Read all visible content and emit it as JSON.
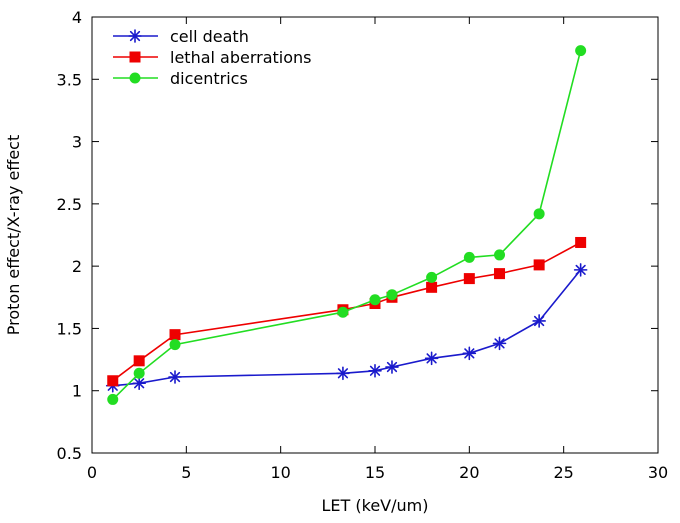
{
  "chart_data": {
    "type": "line",
    "title": "",
    "xlabel": "LET (keV/um)",
    "ylabel": "Proton effect/X-ray effect",
    "xlim": [
      0,
      30
    ],
    "ylim": [
      0.5,
      4
    ],
    "xticks": [
      0,
      5,
      10,
      15,
      20,
      25,
      30
    ],
    "yticks": [
      0.5,
      1,
      1.5,
      2,
      2.5,
      3,
      3.5,
      4
    ],
    "xtick_labels": [
      "0",
      "5",
      "10",
      "15",
      "20",
      "25",
      "30"
    ],
    "ytick_labels": [
      "0.5",
      "1",
      "1.5",
      "2",
      "2.5",
      "3",
      "3.5",
      "4"
    ],
    "grid": false,
    "legend_position": "top-left",
    "series": [
      {
        "name": "cell death",
        "color": "#1a1acc",
        "marker": "asterisk",
        "x": [
          1.1,
          2.5,
          4.4,
          13.3,
          15.0,
          15.9,
          18.0,
          20.0,
          21.6,
          23.7,
          25.9
        ],
        "y": [
          1.04,
          1.06,
          1.11,
          1.14,
          1.16,
          1.19,
          1.26,
          1.3,
          1.38,
          1.56,
          1.97
        ]
      },
      {
        "name": "lethal aberrations",
        "color": "#ee0000",
        "marker": "square",
        "x": [
          1.1,
          2.5,
          4.4,
          13.3,
          15.0,
          15.9,
          18.0,
          20.0,
          21.6,
          23.7,
          25.9
        ],
        "y": [
          1.08,
          1.24,
          1.45,
          1.65,
          1.7,
          1.75,
          1.83,
          1.9,
          1.94,
          2.01,
          2.19
        ]
      },
      {
        "name": "dicentrics",
        "color": "#22dd22",
        "marker": "circle",
        "x": [
          1.1,
          2.5,
          4.4,
          13.3,
          15.0,
          15.9,
          18.0,
          20.0,
          21.6,
          23.7,
          25.9
        ],
        "y": [
          0.93,
          1.14,
          1.37,
          1.63,
          1.73,
          1.77,
          1.91,
          2.07,
          2.09,
          2.42,
          3.73
        ]
      }
    ]
  }
}
